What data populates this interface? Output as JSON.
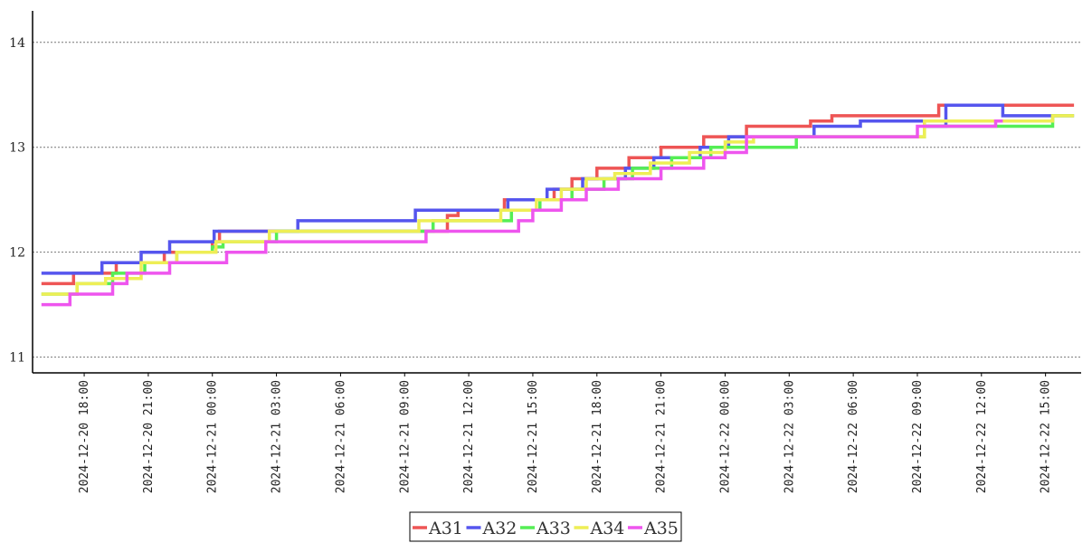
{
  "chart_data": {
    "type": "line",
    "step": true,
    "title": "",
    "xlabel": "",
    "ylabel": "",
    "ylim": [
      10.85,
      14.3
    ],
    "xlim": [
      "2024-12-20 15:35",
      "2024-12-22 16:40"
    ],
    "grid": "horizontal dotted",
    "legend_position": "bottom-center",
    "y_ticks": [
      11,
      12,
      13,
      14
    ],
    "y_tick_labels": [
      "11",
      "12",
      "13",
      "14"
    ],
    "x_ticks": [
      "2024-12-20 18:00",
      "2024-12-20 21:00",
      "2024-12-21 00:00",
      "2024-12-21 03:00",
      "2024-12-21 06:00",
      "2024-12-21 09:00",
      "2024-12-21 12:00",
      "2024-12-21 15:00",
      "2024-12-21 18:00",
      "2024-12-21 21:00",
      "2024-12-22 00:00",
      "2024-12-22 03:00",
      "2024-12-22 06:00",
      "2024-12-22 09:00",
      "2024-12-22 12:00",
      "2024-12-22 15:00"
    ],
    "x_tick_labels": [
      "2024-12-20  18:00",
      "2024-12-20  21:00",
      "2024-12-21  00:00",
      "2024-12-21  03:00",
      "2024-12-21  06:00",
      "2024-12-21  09:00",
      "2024-12-21  12:00",
      "2024-12-21  15:00",
      "2024-12-21  18:00",
      "2024-12-21  21:00",
      "2024-12-22  00:00",
      "2024-12-22  03:00",
      "2024-12-22  06:00",
      "2024-12-22  09:00",
      "2024-12-22  12:00",
      "2024-12-22  15:00"
    ],
    "series": [
      {
        "name": "A31",
        "color": "#ee5555",
        "x": [
          "2024-12-20 16:00",
          "2024-12-20 17:30",
          "2024-12-20 19:30",
          "2024-12-20 21:45",
          "2024-12-21 00:00",
          "2024-12-21 00:20",
          "2024-12-21 11:00",
          "2024-12-21 11:30",
          "2024-12-21 13:40",
          "2024-12-21 16:00",
          "2024-12-21 16:50",
          "2024-12-21 18:00",
          "2024-12-21 19:30",
          "2024-12-21 21:00",
          "2024-12-21 23:00",
          "2024-12-22 01:00",
          "2024-12-22 04:00",
          "2024-12-22 05:00",
          "2024-12-22 10:00",
          "2024-12-22 16:20"
        ],
        "y": [
          11.7,
          11.8,
          11.9,
          12.0,
          12.1,
          12.2,
          12.35,
          12.4,
          12.5,
          12.6,
          12.7,
          12.8,
          12.9,
          13.0,
          13.1,
          13.2,
          13.25,
          13.3,
          13.4,
          13.4
        ]
      },
      {
        "name": "A32",
        "color": "#5555ee",
        "x": [
          "2024-12-20 16:00",
          "2024-12-20 17:20",
          "2024-12-20 18:50",
          "2024-12-20 20:40",
          "2024-12-20 22:00",
          "2024-12-21 00:05",
          "2024-12-21 04:00",
          "2024-12-21 09:30",
          "2024-12-21 13:50",
          "2024-12-21 15:40",
          "2024-12-21 17:20",
          "2024-12-21 19:20",
          "2024-12-21 20:40",
          "2024-12-21 22:50",
          "2024-12-22 00:10",
          "2024-12-22 04:10",
          "2024-12-22 05:00",
          "2024-12-22 06:20",
          "2024-12-22 09:20",
          "2024-12-22 10:20",
          "2024-12-22 13:00",
          "2024-12-22 16:20"
        ],
        "y": [
          11.8,
          11.8,
          11.9,
          12.0,
          12.1,
          12.2,
          12.3,
          12.4,
          12.5,
          12.6,
          12.7,
          12.8,
          12.9,
          13.0,
          13.1,
          13.2,
          13.2,
          13.25,
          13.2,
          13.4,
          13.3,
          13.3
        ]
      },
      {
        "name": "A33",
        "color": "#55ee55",
        "x": [
          "2024-12-20 16:00",
          "2024-12-20 17:40",
          "2024-12-20 19:20",
          "2024-12-20 20:50",
          "2024-12-20 22:20",
          "2024-12-21 00:00",
          "2024-12-21 00:30",
          "2024-12-21 03:00",
          "2024-12-21 10:20",
          "2024-12-21 14:00",
          "2024-12-21 15:20",
          "2024-12-21 16:50",
          "2024-12-21 18:20",
          "2024-12-21 19:40",
          "2024-12-21 21:30",
          "2024-12-21 23:20",
          "2024-12-22 03:20",
          "2024-12-22 09:20",
          "2024-12-22 15:20",
          "2024-12-22 16:20"
        ],
        "y": [
          11.6,
          11.7,
          11.8,
          11.9,
          12.0,
          12.05,
          12.1,
          12.2,
          12.3,
          12.4,
          12.5,
          12.6,
          12.7,
          12.8,
          12.9,
          13.0,
          13.1,
          13.2,
          13.3,
          13.3
        ]
      },
      {
        "name": "A34",
        "color": "#eeee55",
        "x": [
          "2024-12-20 16:00",
          "2024-12-20 17:40",
          "2024-12-20 19:00",
          "2024-12-20 20:40",
          "2024-12-20 22:20",
          "2024-12-21 00:10",
          "2024-12-21 02:40",
          "2024-12-21 09:40",
          "2024-12-21 13:30",
          "2024-12-21 15:10",
          "2024-12-21 16:20",
          "2024-12-21 17:30",
          "2024-12-21 18:50",
          "2024-12-21 20:30",
          "2024-12-21 22:20",
          "2024-12-22 00:00",
          "2024-12-22 01:20",
          "2024-12-22 09:20",
          "2024-12-22 15:20",
          "2024-12-22 16:20"
        ],
        "y": [
          11.6,
          11.7,
          11.75,
          11.9,
          12.0,
          12.1,
          12.2,
          12.3,
          12.4,
          12.5,
          12.6,
          12.7,
          12.75,
          12.85,
          12.95,
          13.05,
          13.1,
          13.25,
          13.3,
          13.3
        ]
      },
      {
        "name": "A35",
        "color": "#ee55ee",
        "x": [
          "2024-12-20 16:00",
          "2024-12-20 17:20",
          "2024-12-20 18:00",
          "2024-12-20 19:20",
          "2024-12-20 20:00",
          "2024-12-20 21:20",
          "2024-12-20 22:00",
          "2024-12-21 00:40",
          "2024-12-21 02:30",
          "2024-12-21 10:00",
          "2024-12-21 14:20",
          "2024-12-21 15:00",
          "2024-12-21 16:20",
          "2024-12-21 17:30",
          "2024-12-21 19:00",
          "2024-12-21 21:00",
          "2024-12-21 23:00",
          "2024-12-22 00:00",
          "2024-12-22 01:00",
          "2024-12-22 09:00",
          "2024-12-22 12:40",
          "2024-12-22 13:00"
        ],
        "y": [
          11.5,
          11.6,
          11.6,
          11.7,
          11.8,
          11.8,
          11.9,
          12.0,
          12.1,
          12.2,
          12.3,
          12.4,
          12.5,
          12.6,
          12.7,
          12.8,
          12.9,
          12.95,
          13.1,
          13.2,
          13.25,
          13.25
        ]
      }
    ]
  }
}
